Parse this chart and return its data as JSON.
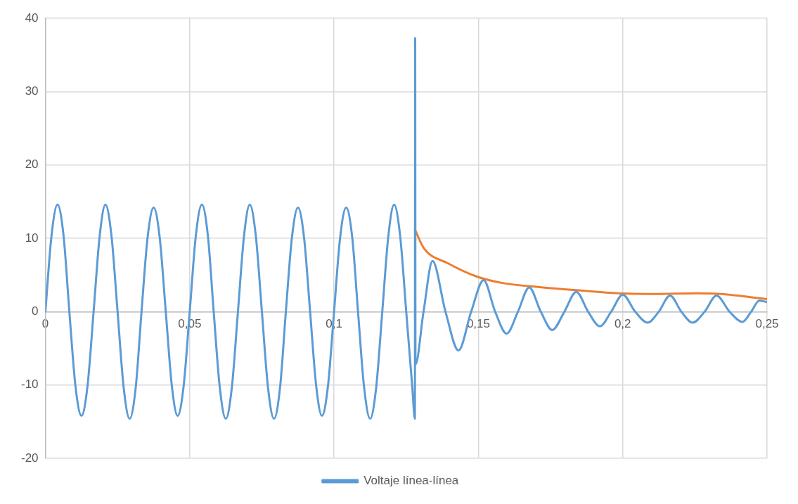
{
  "chart_data": {
    "type": "line",
    "marker": "none",
    "line_style": "solid",
    "grid": true,
    "legend": "bottom",
    "xlim": [
      0,
      0.25
    ],
    "xticks": [
      0,
      {
        "value": 0.05,
        "label": "0,05"
      },
      {
        "value": 0.1,
        "label": "0,1"
      },
      {
        "value": 0.15,
        "label": "0,15"
      },
      {
        "value": 0.2,
        "label": "0,2"
      },
      {
        "value": 0.25,
        "label": "0,25"
      }
    ],
    "ylim": [
      -20,
      40
    ],
    "yticks": [
      -20,
      -10,
      0,
      10,
      20,
      30,
      40
    ],
    "series": [
      {
        "name": "Voltaje línea-línea",
        "color": "#5b9bd5",
        "type": "line",
        "x": [
          0,
          0.0021,
          0.0042,
          0.0063,
          0.0083,
          0.0104,
          0.0125,
          0.0146,
          0.0167,
          0.0188,
          0.0208,
          0.0229,
          0.025,
          0.0271,
          0.0292,
          0.0313,
          0.0333,
          0.0354,
          0.0375,
          0.0396,
          0.0417,
          0.0438,
          0.0458,
          0.0479,
          0.05,
          0.0521,
          0.0542,
          0.0563,
          0.0583,
          0.0604,
          0.0625,
          0.0646,
          0.0667,
          0.0688,
          0.0708,
          0.0729,
          0.075,
          0.0771,
          0.0792,
          0.0813,
          0.0833,
          0.0854,
          0.0875,
          0.0896,
          0.0917,
          0.0938,
          0.0958,
          0.0979,
          0.1,
          0.1021,
          0.1042,
          0.1063,
          0.1083,
          0.1104,
          0.1125,
          0.1146,
          0.1167,
          0.1188,
          0.1208,
          0.1229,
          0.125,
          0.1271,
          0.128,
          0.1281,
          0.1282,
          0.131,
          0.1341,
          0.1386,
          0.1431,
          0.1475,
          0.1518,
          0.1558,
          0.1598,
          0.1637,
          0.1676,
          0.1716,
          0.1756,
          0.1798,
          0.1839,
          0.188,
          0.1921,
          0.196,
          0.2,
          0.2043,
          0.2086,
          0.2125,
          0.2164,
          0.2203,
          0.2242,
          0.2284,
          0.2325,
          0.237,
          0.2415,
          0.2445,
          0.2473,
          0.25
        ],
        "values": [
          0,
          10.3,
          14.6,
          10.3,
          0,
          -10.1,
          -14.2,
          -10.1,
          0,
          10.3,
          14.6,
          10.3,
          0,
          -10.3,
          -14.6,
          -10.3,
          0,
          10.1,
          14.2,
          10.1,
          0,
          -10.1,
          -14.2,
          -10.1,
          0,
          10.3,
          14.6,
          10.3,
          0,
          -10.3,
          -14.6,
          -10.3,
          0,
          10.3,
          14.6,
          10.3,
          0,
          -10.3,
          -14.6,
          -10.3,
          0,
          10.1,
          14.2,
          10.1,
          0,
          -10.1,
          -14.2,
          -10.1,
          0,
          10.1,
          14.2,
          10.1,
          0,
          -10.3,
          -14.6,
          -10.3,
          0,
          10.3,
          14.6,
          10.3,
          0,
          -10.3,
          -14.6,
          37.3,
          -7.2,
          0,
          6.9,
          0,
          -5.3,
          0,
          4.3,
          0,
          -3.0,
          0,
          3.3,
          0,
          -2.5,
          0,
          2.7,
          0,
          -2.0,
          0,
          2.3,
          0,
          -1.5,
          0,
          2.2,
          0,
          -1.5,
          0,
          2.2,
          0,
          -1.4,
          0,
          1.5,
          1.3
        ]
      },
      {
        "color": "#ed7d31",
        "type": "line",
        "x": [
          0.128,
          0.1312,
          0.1394,
          0.1493,
          0.1584,
          0.1724,
          0.1847,
          0.1986,
          0.2094,
          0.2258,
          0.2341,
          0.248,
          0.25
        ],
        "values": [
          11.2,
          8.6,
          6.6,
          4.8,
          3.9,
          3.3,
          2.9,
          2.5,
          2.4,
          2.5,
          2.4,
          1.8,
          1.7
        ]
      }
    ]
  }
}
